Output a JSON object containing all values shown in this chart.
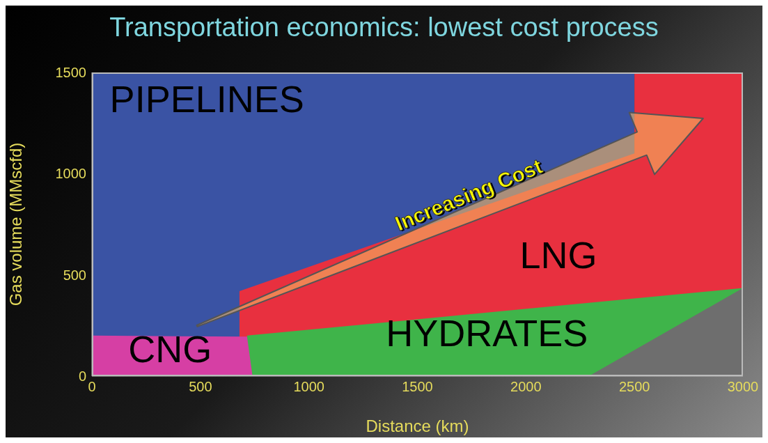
{
  "chart_data": {
    "type": "area",
    "title": "Transportation economics: lowest cost process",
    "xlabel": "Distance (km)",
    "ylabel": "Gas volume (MMscfd)",
    "xlim": [
      0,
      3000
    ],
    "xticks": [
      0,
      500,
      1000,
      1500,
      2000,
      2500,
      3000
    ],
    "ylim": [
      0,
      1500
    ],
    "yticks": [
      0,
      500,
      1000,
      1500
    ],
    "legend": false,
    "series": [
      {
        "name": "PIPELINES",
        "color": "#3a53a4",
        "x": [
          0,
          2500
        ],
        "values": [
          1500,
          1500
        ]
      },
      {
        "name": "LNG",
        "color": "#e8303f",
        "x": [
          680,
          2500,
          2500,
          3000
        ],
        "values": [
          420,
          1100,
          1500,
          1500
        ]
      },
      {
        "name": "HYDRATES",
        "color": "#3fb44a",
        "x": [
          715,
          3000
        ],
        "values": [
          200,
          435
        ]
      },
      {
        "name": null,
        "color": "#6e6e6e",
        "x": [
          2290,
          3000
        ],
        "values": [
          0,
          435
        ]
      },
      {
        "name": "CNG",
        "color": "#d63fa4",
        "x": [
          0,
          715,
          740
        ],
        "values": [
          200,
          195,
          0
        ]
      }
    ],
    "annotations": [
      "Increasing Cost"
    ]
  }
}
